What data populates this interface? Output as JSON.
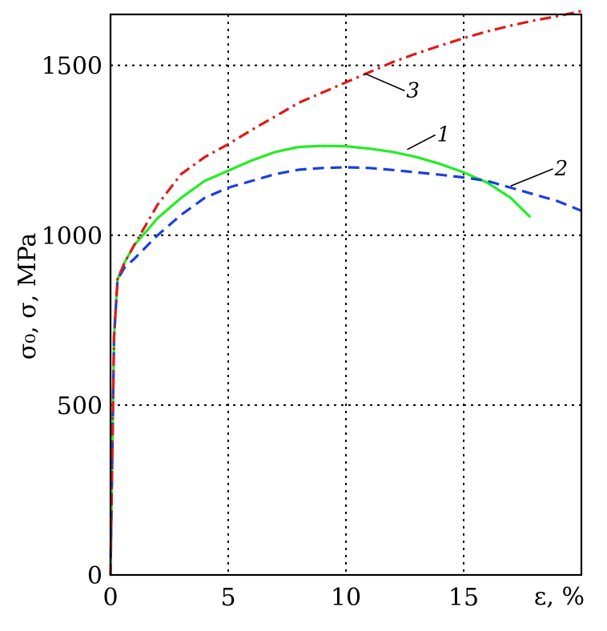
{
  "chart_data": {
    "type": "line",
    "xlabel": "ε, %",
    "ylabel": "σ₀, σ, MPa",
    "xlim": [
      0,
      20
    ],
    "ylim": [
      0,
      1650
    ],
    "xticks": [
      0,
      5,
      10,
      15
    ],
    "yticks": [
      0,
      500,
      1000,
      1500
    ],
    "grid": true,
    "series": [
      {
        "name": "1",
        "color": "#22ee22",
        "style": "solid",
        "points": [
          [
            0,
            0
          ],
          [
            0.15,
            700
          ],
          [
            0.3,
            870
          ],
          [
            0.6,
            920
          ],
          [
            1,
            970
          ],
          [
            2,
            1050
          ],
          [
            3,
            1110
          ],
          [
            4,
            1160
          ],
          [
            5,
            1190
          ],
          [
            6,
            1220
          ],
          [
            7,
            1245
          ],
          [
            8,
            1260
          ],
          [
            9,
            1263
          ],
          [
            10,
            1262
          ],
          [
            11,
            1255
          ],
          [
            12,
            1245
          ],
          [
            13,
            1230
          ],
          [
            14,
            1210
          ],
          [
            15,
            1185
          ],
          [
            16,
            1155
          ],
          [
            17,
            1110
          ],
          [
            17.8,
            1055
          ]
        ]
      },
      {
        "name": "2",
        "color": "#1a3fe0",
        "style": "dashed",
        "points": [
          [
            0,
            0
          ],
          [
            0.15,
            700
          ],
          [
            0.3,
            870
          ],
          [
            0.6,
            905
          ],
          [
            1,
            930
          ],
          [
            2,
            1000
          ],
          [
            3,
            1060
          ],
          [
            4,
            1110
          ],
          [
            5,
            1140
          ],
          [
            6,
            1160
          ],
          [
            7,
            1180
          ],
          [
            8,
            1193
          ],
          [
            9,
            1198
          ],
          [
            10,
            1200
          ],
          [
            11,
            1198
          ],
          [
            12,
            1192
          ],
          [
            13,
            1185
          ],
          [
            14,
            1178
          ],
          [
            15,
            1170
          ],
          [
            16,
            1160
          ],
          [
            17,
            1140
          ],
          [
            18,
            1120
          ],
          [
            19,
            1100
          ],
          [
            20,
            1072
          ]
        ]
      },
      {
        "name": "3",
        "color": "#e01a1a",
        "style": "dashdot",
        "points": [
          [
            0,
            0
          ],
          [
            0.15,
            700
          ],
          [
            0.3,
            870
          ],
          [
            0.6,
            920
          ],
          [
            1,
            970
          ],
          [
            2,
            1090
          ],
          [
            3,
            1180
          ],
          [
            4,
            1230
          ],
          [
            5,
            1268
          ],
          [
            6,
            1310
          ],
          [
            7,
            1350
          ],
          [
            8,
            1390
          ],
          [
            9,
            1420
          ],
          [
            10,
            1450
          ],
          [
            11,
            1480
          ],
          [
            12,
            1510
          ],
          [
            13,
            1535
          ],
          [
            14,
            1558
          ],
          [
            15,
            1580
          ],
          [
            16,
            1600
          ],
          [
            17,
            1617
          ],
          [
            18,
            1632
          ],
          [
            19,
            1645
          ],
          [
            20,
            1660
          ]
        ]
      }
    ],
    "annotations": [
      {
        "text": "1",
        "series": 0,
        "at": [
          12.6,
          1252
        ],
        "text_at": [
          14,
          1300
        ]
      },
      {
        "text": "2",
        "series": 1,
        "at": [
          17,
          1145
        ],
        "text_at": [
          19,
          1200
        ]
      },
      {
        "text": "3",
        "series": 2,
        "at": [
          10.8,
          1476
        ],
        "text_at": [
          12.7,
          1430
        ]
      }
    ]
  }
}
